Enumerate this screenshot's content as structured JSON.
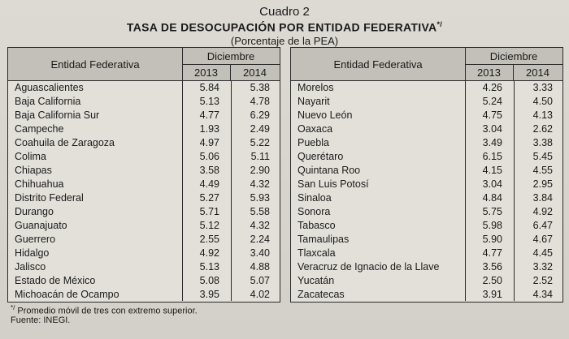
{
  "header": {
    "cuadro": "Cuadro 2",
    "title": "TASA DE DESOCUPACIÓN POR ENTIDAD FEDERATIVA",
    "title_sup": "*/",
    "subtitle": "(Porcentaje de la PEA)"
  },
  "table": {
    "col_entity": "Entidad Federativa",
    "col_group": "Diciembre",
    "year1": "2013",
    "year2": "2014",
    "left_rows": [
      {
        "entity": "Aguascalientes",
        "v2013": "5.84",
        "v2014": "5.38"
      },
      {
        "entity": "Baja California",
        "v2013": "5.13",
        "v2014": "4.78"
      },
      {
        "entity": "Baja California Sur",
        "v2013": "4.77",
        "v2014": "6.29"
      },
      {
        "entity": "Campeche",
        "v2013": "1.93",
        "v2014": "2.49"
      },
      {
        "entity": "Coahuila de Zaragoza",
        "v2013": "4.97",
        "v2014": "5.22"
      },
      {
        "entity": "Colima",
        "v2013": "5.06",
        "v2014": "5.11"
      },
      {
        "entity": "Chiapas",
        "v2013": "3.58",
        "v2014": "2.90"
      },
      {
        "entity": "Chihuahua",
        "v2013": "4.49",
        "v2014": "4.32"
      },
      {
        "entity": "Distrito Federal",
        "v2013": "5.27",
        "v2014": "5.93"
      },
      {
        "entity": "Durango",
        "v2013": "5.71",
        "v2014": "5.58"
      },
      {
        "entity": "Guanajuato",
        "v2013": "5.12",
        "v2014": "4.32"
      },
      {
        "entity": "Guerrero",
        "v2013": "2.55",
        "v2014": "2.24"
      },
      {
        "entity": "Hidalgo",
        "v2013": "4.92",
        "v2014": "3.40"
      },
      {
        "entity": "Jalisco",
        "v2013": "5.13",
        "v2014": "4.88"
      },
      {
        "entity": "Estado de México",
        "v2013": "5.08",
        "v2014": "5.07"
      },
      {
        "entity": "Michoacán de Ocampo",
        "v2013": "3.95",
        "v2014": "4.02"
      }
    ],
    "right_rows": [
      {
        "entity": "Morelos",
        "v2013": "4.26",
        "v2014": "3.33"
      },
      {
        "entity": "Nayarit",
        "v2013": "5.24",
        "v2014": "4.50"
      },
      {
        "entity": "Nuevo León",
        "v2013": "4.75",
        "v2014": "4.13"
      },
      {
        "entity": "Oaxaca",
        "v2013": "3.04",
        "v2014": "2.62"
      },
      {
        "entity": "Puebla",
        "v2013": "3.49",
        "v2014": "3.38"
      },
      {
        "entity": "Querétaro",
        "v2013": "6.15",
        "v2014": "5.45"
      },
      {
        "entity": "Quintana Roo",
        "v2013": "4.15",
        "v2014": "4.55"
      },
      {
        "entity": "San Luis Potosí",
        "v2013": "3.04",
        "v2014": "2.95"
      },
      {
        "entity": "Sinaloa",
        "v2013": "4.84",
        "v2014": "3.84"
      },
      {
        "entity": "Sonora",
        "v2013": "5.75",
        "v2014": "4.92"
      },
      {
        "entity": "Tabasco",
        "v2013": "5.98",
        "v2014": "6.47"
      },
      {
        "entity": "Tamaulipas",
        "v2013": "5.90",
        "v2014": "4.67"
      },
      {
        "entity": "Tlaxcala",
        "v2013": "4.77",
        "v2014": "4.45"
      },
      {
        "entity": "Veracruz de Ignacio de la Llave",
        "v2013": "3.56",
        "v2014": "3.32"
      },
      {
        "entity": "Yucatán",
        "v2013": "2.50",
        "v2014": "2.52"
      },
      {
        "entity": "Zacatecas",
        "v2013": "3.91",
        "v2014": "4.34"
      }
    ]
  },
  "footer": {
    "note_sup": "*/",
    "note": " Promedio móvil de tres con extremo superior.",
    "source": "Fuente: INEGI."
  }
}
